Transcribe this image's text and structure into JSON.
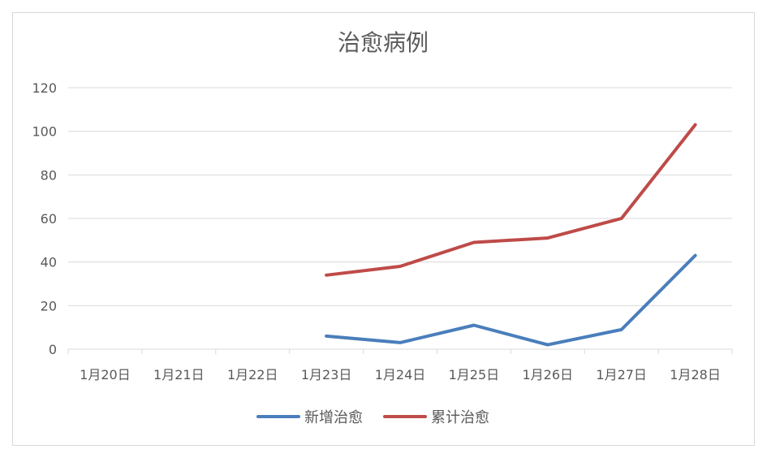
{
  "chart_data": {
    "type": "line",
    "title": "治愈病例",
    "xlabel": "",
    "ylabel": "",
    "categories": [
      "1月20日",
      "1月21日",
      "1月22日",
      "1月23日",
      "1月24日",
      "1月25日",
      "1月26日",
      "1月27日",
      "1月28日"
    ],
    "ylim": [
      0,
      120
    ],
    "yticks": [
      0,
      20,
      40,
      60,
      80,
      100,
      120
    ],
    "grid": true,
    "legend": "bottom",
    "series": [
      {
        "name": "新增治愈",
        "color": "#4a7ebb",
        "values": [
          null,
          null,
          null,
          6,
          3,
          11,
          2,
          9,
          43
        ]
      },
      {
        "name": "累计治愈",
        "color": "#be4b48",
        "values": [
          null,
          null,
          null,
          34,
          38,
          49,
          51,
          60,
          103
        ]
      }
    ]
  }
}
